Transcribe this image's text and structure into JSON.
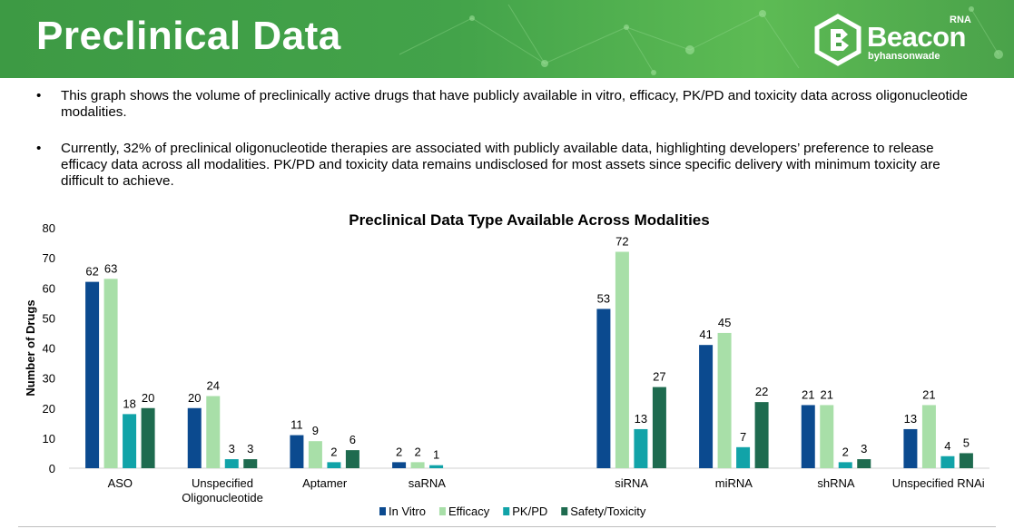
{
  "header": {
    "title": "Preclinical Data",
    "logo_tag": "RNA",
    "logo_name": "Beacon",
    "logo_sub": "byhansonwade"
  },
  "bullets": [
    "This graph shows the volume of preclinically active drugs that have publicly available in vitro, efficacy, PK/PD and toxicity data across oligonucleotide modalities.",
    "Currently, 32% of preclinical oligonucleotide therapies are associated with publicly available data, highlighting developers’ preference to release efficacy data across all modalities. PK/PD and toxicity data remains undisclosed for most assets since specific delivery with minimum toxicity are difficult to achieve."
  ],
  "chart_data": {
    "type": "bar",
    "title": "Preclinical Data Type Available Across Modalities",
    "xlabel": "",
    "ylabel": "Number of Drugs",
    "ylim": [
      0,
      80
    ],
    "yticks": [
      0,
      10,
      20,
      30,
      40,
      50,
      60,
      70,
      80
    ],
    "grid": false,
    "legend_position": "bottom",
    "data_labels": true,
    "categories": [
      "ASO",
      "Unspecified\nOligonucleotide",
      "Aptamer",
      "saRNA",
      "",
      "siRNA",
      "miRNA",
      "shRNA",
      "Unspecified RNAi"
    ],
    "series": [
      {
        "name": "In Vitro",
        "color": "#0b4a8f",
        "values": [
          62,
          20,
          11,
          2,
          null,
          53,
          41,
          21,
          13
        ]
      },
      {
        "name": "Efficacy",
        "color": "#a8dfa8",
        "values": [
          63,
          24,
          9,
          2,
          null,
          72,
          45,
          21,
          21
        ]
      },
      {
        "name": "PK/PD",
        "color": "#11a3a8",
        "values": [
          18,
          3,
          2,
          1,
          null,
          13,
          7,
          2,
          4
        ]
      },
      {
        "name": "Safety/Toxicity",
        "color": "#1e6b4f",
        "values": [
          20,
          3,
          6,
          null,
          null,
          27,
          22,
          3,
          5
        ]
      }
    ]
  }
}
